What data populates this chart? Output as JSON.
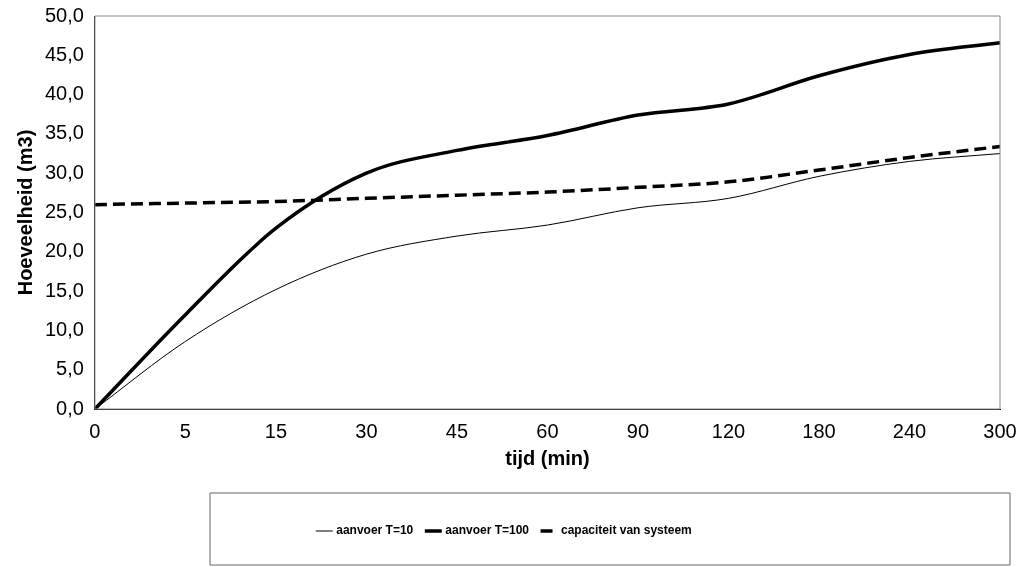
{
  "chart_data": {
    "type": "line",
    "xlabel": "tijd (min)",
    "ylabel": "Hoeveelheid (m3)",
    "categories": [
      "0",
      "5",
      "15",
      "30",
      "45",
      "60",
      "90",
      "120",
      "180",
      "240",
      "300"
    ],
    "series": [
      {
        "name": "aanvoer T=10",
        "color": "#000000",
        "line_style": "solid",
        "values": [
          0,
          8.6,
          15.2,
          19.7,
          22.0,
          23.4,
          25.6,
          26.8,
          29.6,
          31.5,
          32.5
        ]
      },
      {
        "name": "aanvoer T=100",
        "color": "#000000",
        "line_style": "solid",
        "values": [
          0,
          12.0,
          23.0,
          30.0,
          32.9,
          34.8,
          37.4,
          38.8,
          42.4,
          45.1,
          46.6
        ]
      },
      {
        "name": "capaciteit van systeem",
        "color": "#000000",
        "line_style": "dashed",
        "values": [
          26.0,
          26.2,
          26.4,
          26.8,
          27.2,
          27.6,
          28.2,
          28.9,
          30.4,
          32.0,
          33.4
        ]
      }
    ],
    "ylim": [
      0,
      50
    ],
    "yticks": [
      {
        "value": 0,
        "label": "0,0"
      },
      {
        "value": 5,
        "label": "5,0"
      },
      {
        "value": 10,
        "label": "10,0"
      },
      {
        "value": 15,
        "label": "15,0"
      },
      {
        "value": 20,
        "label": "20,0"
      },
      {
        "value": 25,
        "label": "25,0"
      },
      {
        "value": 30,
        "label": "30,0"
      },
      {
        "value": 35,
        "label": "35,0"
      },
      {
        "value": 40,
        "label": "40,0"
      },
      {
        "value": 45,
        "label": "45,0"
      },
      {
        "value": 50,
        "label": "50,0"
      }
    ],
    "grid": false,
    "legend": "bottom",
    "marker": "none"
  }
}
